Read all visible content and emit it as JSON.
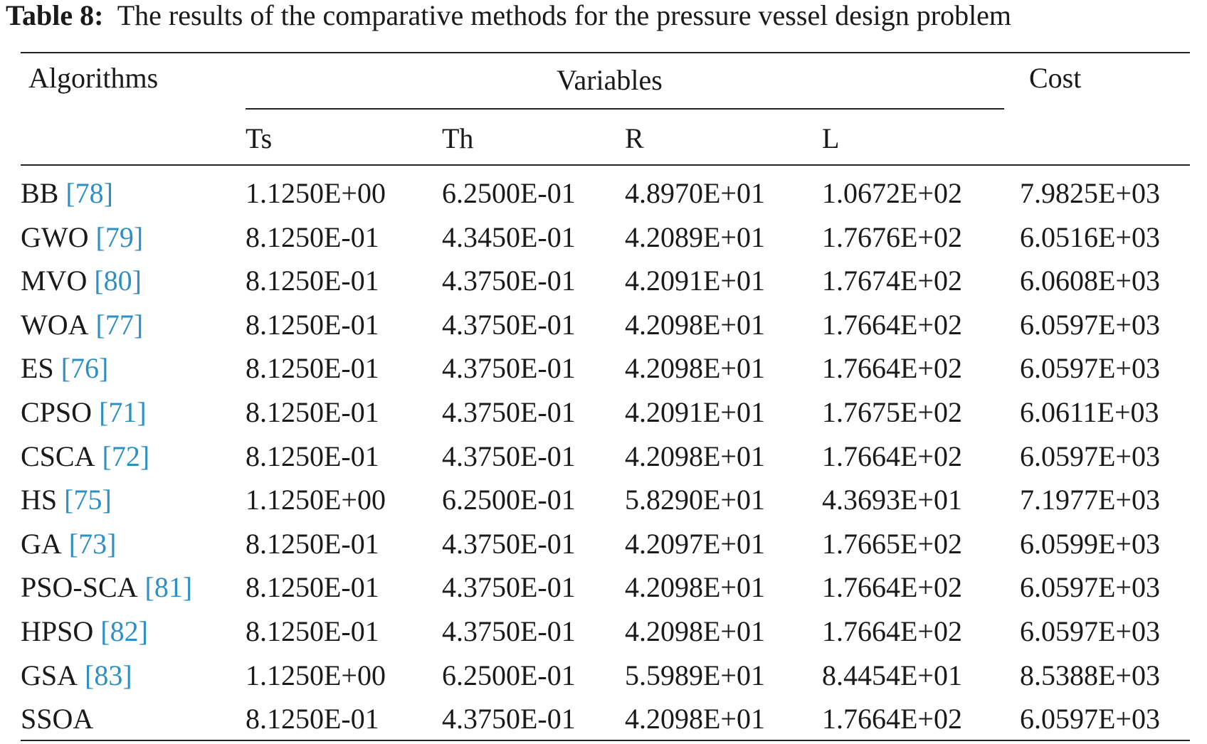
{
  "caption": {
    "label": "Table 8:",
    "text": "The results of the comparative methods for the pressure vessel design problem"
  },
  "header": {
    "algorithms": "Algorithms",
    "variables": "Variables",
    "cost": "Cost",
    "columns": [
      "Ts",
      "Th",
      "R",
      "L"
    ]
  },
  "rows": [
    {
      "name": "BB",
      "ref": "[78]",
      "values": [
        "1.1250E+00",
        "6.2500E-01",
        "4.8970E+01",
        "1.0672E+02",
        "7.9825E+03"
      ]
    },
    {
      "name": "GWO",
      "ref": "[79]",
      "values": [
        "8.1250E-01",
        "4.3450E-01",
        "4.2089E+01",
        "1.7676E+02",
        "6.0516E+03"
      ]
    },
    {
      "name": "MVO",
      "ref": "[80]",
      "values": [
        "8.1250E-01",
        "4.3750E-01",
        "4.2091E+01",
        "1.7674E+02",
        "6.0608E+03"
      ]
    },
    {
      "name": "WOA",
      "ref": "[77]",
      "values": [
        "8.1250E-01",
        "4.3750E-01",
        "4.2098E+01",
        "1.7664E+02",
        "6.0597E+03"
      ]
    },
    {
      "name": "ES",
      "ref": "[76]",
      "values": [
        "8.1250E-01",
        "4.3750E-01",
        "4.2098E+01",
        "1.7664E+02",
        "6.0597E+03"
      ]
    },
    {
      "name": "CPSO",
      "ref": "[71]",
      "values": [
        "8.1250E-01",
        "4.3750E-01",
        "4.2091E+01",
        "1.7675E+02",
        "6.0611E+03"
      ]
    },
    {
      "name": "CSCA",
      "ref": "[72]",
      "values": [
        "8.1250E-01",
        "4.3750E-01",
        "4.2098E+01",
        "1.7664E+02",
        "6.0597E+03"
      ]
    },
    {
      "name": "HS",
      "ref": "[75]",
      "values": [
        "1.1250E+00",
        "6.2500E-01",
        "5.8290E+01",
        "4.3693E+01",
        "7.1977E+03"
      ]
    },
    {
      "name": "GA",
      "ref": "[73]",
      "values": [
        "8.1250E-01",
        "4.3750E-01",
        "4.2097E+01",
        "1.7665E+02",
        "6.0599E+03"
      ]
    },
    {
      "name": "PSO-SCA",
      "ref": "[81]",
      "values": [
        "8.1250E-01",
        "4.3750E-01",
        "4.2098E+01",
        "1.7664E+02",
        "6.0597E+03"
      ]
    },
    {
      "name": "HPSO",
      "ref": "[82]",
      "values": [
        "8.1250E-01",
        "4.3750E-01",
        "4.2098E+01",
        "1.7664E+02",
        "6.0597E+03"
      ]
    },
    {
      "name": "GSA",
      "ref": "[83]",
      "values": [
        "1.1250E+00",
        "6.2500E-01",
        "5.5989E+01",
        "8.4454E+01",
        "8.5388E+03"
      ]
    },
    {
      "name": "SSOA",
      "values": [
        "8.1250E-01",
        "4.3750E-01",
        "4.2098E+01",
        "1.7664E+02",
        "6.0597E+03"
      ]
    }
  ]
}
